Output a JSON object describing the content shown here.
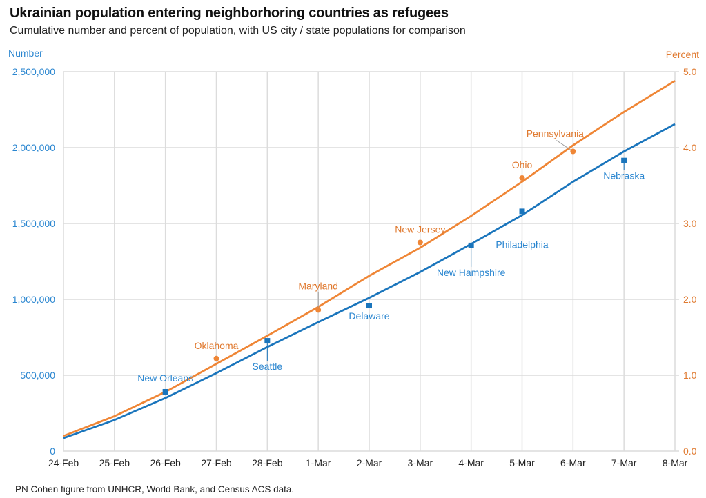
{
  "title": "Ukrainian population entering neighborhoring countries as refugees",
  "subtitle": "Cumulative number and percent of population, with US city / state populations for comparison",
  "footer": "PN Cohen figure from UNHCR, World Bank, and Census ACS data.",
  "colors": {
    "number": "#1a75bc",
    "percent": "#ef8636",
    "number_text": "#2a86d0",
    "percent_text": "#e07a30",
    "grid": "#dcdcdc"
  },
  "chart_data": {
    "type": "line",
    "title": "Ukrainian population entering neighborhoring countries as refugees",
    "subtitle": "Cumulative number and percent of population, with US city / state populations for comparison",
    "xlabel": "",
    "ylabel": "Number",
    "y2label": "Percent",
    "categories": [
      "24-Feb",
      "25-Feb",
      "26-Feb",
      "27-Feb",
      "28-Feb",
      "1-Mar",
      "2-Mar",
      "3-Mar",
      "4-Mar",
      "5-Mar",
      "6-Mar",
      "7-Mar",
      "8-Mar"
    ],
    "ylim": [
      0,
      2500000
    ],
    "y2lim": [
      0,
      5.0
    ],
    "yticks": [
      {
        "value": 0,
        "label": "0"
      },
      {
        "value": 500000,
        "label": "500,000"
      },
      {
        "value": 1000000,
        "label": "1,000,000"
      },
      {
        "value": 1500000,
        "label": "1,500,000"
      },
      {
        "value": 2000000,
        "label": "2,000,000"
      },
      {
        "value": 2500000,
        "label": "2,500,000"
      }
    ],
    "y2ticks": [
      {
        "value": 0,
        "label": "0.0"
      },
      {
        "value": 1,
        "label": "1.0"
      },
      {
        "value": 2,
        "label": "2.0"
      },
      {
        "value": 3,
        "label": "3.0"
      },
      {
        "value": 4,
        "label": "4.0"
      },
      {
        "value": 5,
        "label": "5.0"
      }
    ],
    "grid": true,
    "series": [
      {
        "name": "Number",
        "axis": "left",
        "values": [
          86000,
          205000,
          350000,
          514000,
          686000,
          850000,
          1010000,
          1180000,
          1365000,
          1555000,
          1775000,
          1975000,
          2155000
        ]
      },
      {
        "name": "Percent",
        "axis": "right",
        "values": [
          0.2,
          0.46,
          0.78,
          1.15,
          1.52,
          1.9,
          2.31,
          2.68,
          3.1,
          3.55,
          4.03,
          4.47,
          4.88
        ]
      }
    ],
    "annotations": [
      {
        "label": "New Orleans",
        "series": "Number",
        "x": "26-Feb",
        "value": 391000,
        "marker": "square",
        "label_pos": "above",
        "leader": false
      },
      {
        "label": "Seattle",
        "series": "Number",
        "x": "28-Feb",
        "value": 727000,
        "marker": "square",
        "label_pos": "below",
        "leader": true
      },
      {
        "label": "Delaware",
        "series": "Number",
        "x": "2-Mar",
        "value": 959000,
        "marker": "square",
        "label_pos": "below",
        "leader": false
      },
      {
        "label": "New Hampshire",
        "series": "Number",
        "x": "4-Mar",
        "value": 1355000,
        "marker": "square",
        "label_pos": "below",
        "leader": true
      },
      {
        "label": "Philadelphia",
        "series": "Number",
        "x": "5-Mar",
        "value": 1580000,
        "marker": "square",
        "label_pos": "below",
        "leader": true
      },
      {
        "label": "Nebraska",
        "series": "Number",
        "x": "7-Mar",
        "value": 1915000,
        "marker": "square",
        "label_pos": "below",
        "leader": true
      },
      {
        "label": "Oklahoma",
        "series": "Percent",
        "x": "27-Feb",
        "value": 1.22,
        "marker": "circle",
        "label_pos": "above",
        "leader": false
      },
      {
        "label": "Maryland",
        "series": "Percent",
        "x": "1-Mar",
        "value": 1.86,
        "marker": "circle",
        "label_pos": "above",
        "leader": true
      },
      {
        "label": "New Jersey",
        "series": "Percent",
        "x": "3-Mar",
        "value": 2.75,
        "marker": "circle",
        "label_pos": "above",
        "leader": false
      },
      {
        "label": "Ohio",
        "series": "Percent",
        "x": "5-Mar",
        "value": 3.6,
        "marker": "circle",
        "label_pos": "above",
        "leader": false
      },
      {
        "label": "Pennsylvania",
        "series": "Percent",
        "x": "6-Mar",
        "value": 3.95,
        "marker": "circle",
        "label_pos": "above-left",
        "leader": true
      }
    ]
  }
}
